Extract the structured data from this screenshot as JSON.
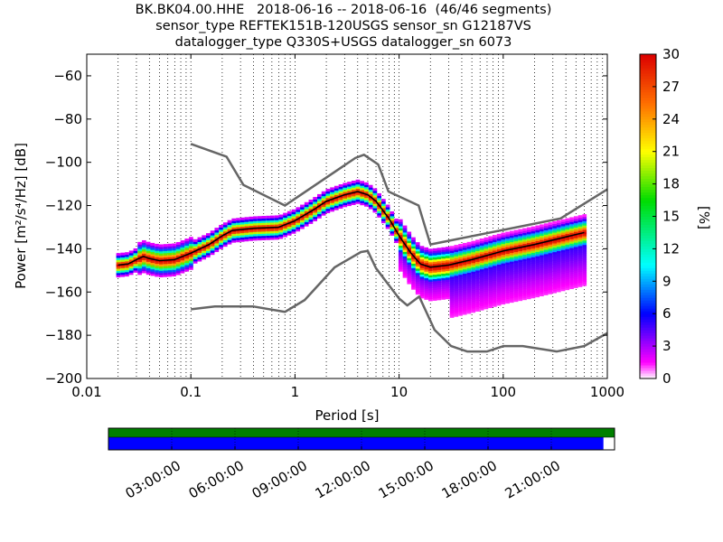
{
  "title_lines": [
    "BK.BK04.00.HHE   2018-06-16 -- 2018-06-16  (46/46 segments)",
    "sensor_type REFTEK151B-120USGS sensor_sn G12187VS",
    "datalogger_type Q330S+USGS datalogger_sn 6073"
  ],
  "chart_data": {
    "type": "heatmap",
    "xlabel": "Period [s]",
    "ylabel": "Power [m²/s⁴/Hz] [dB]",
    "xscale": "log",
    "xlim": [
      0.01,
      1000
    ],
    "ylim": [
      -200,
      -50
    ],
    "x_ticks": [
      0.01,
      0.1,
      1,
      10,
      100,
      1000
    ],
    "x_tick_labels": [
      "0.01",
      "0.1",
      "1",
      "10",
      "100",
      "1000"
    ],
    "y_ticks": [
      -200,
      -180,
      -160,
      -140,
      -120,
      -100,
      -80,
      -60
    ],
    "y_tick_labels": [
      "−200",
      "−180",
      "−160",
      "−140",
      "−120",
      "−100",
      "−80",
      "−60"
    ],
    "grid": "dotted-vertical",
    "colorbar": {
      "label": "[%]",
      "range": [
        0,
        30
      ],
      "ticks": [
        0,
        3,
        6,
        9,
        12,
        15,
        18,
        21,
        24,
        27,
        30
      ],
      "tick_labels": [
        "0",
        "3",
        "6",
        "9",
        "12",
        "15",
        "18",
        "21",
        "24",
        "27",
        "30"
      ]
    },
    "noise_model_high": {
      "x": [
        0.1,
        0.22,
        0.32,
        0.8,
        3.8,
        4.6,
        6.3,
        7.9,
        15.4,
        20,
        354.8,
        1000
      ],
      "y": [
        -91.5,
        -97.4,
        -110.5,
        -120,
        -98,
        -96.5,
        -101,
        -113.5,
        -120,
        -138,
        -126,
        -112.5
      ]
    },
    "noise_model_low": {
      "x": [
        0.1,
        0.17,
        0.4,
        0.8,
        1.24,
        2.4,
        4.3,
        5.0,
        6.0,
        10.0,
        12.0,
        15.6,
        21.9,
        31.6,
        45.0,
        70.0,
        101.0,
        154.0,
        328.0,
        600.0,
        1000.0
      ],
      "y": [
        -168,
        -166.7,
        -166.7,
        -169.2,
        -163.7,
        -148.6,
        -141.5,
        -141.0,
        -149.0,
        -163.0,
        -166.2,
        -162.1,
        -177.5,
        -185.0,
        -187.5,
        -187.5,
        -185.0,
        -185.0,
        -187.5,
        -185.0,
        -179.0
      ]
    },
    "mean_psd": {
      "x": [
        0.02,
        0.025,
        0.03,
        0.035,
        0.04,
        0.05,
        0.07,
        0.1,
        0.15,
        0.2,
        0.25,
        0.4,
        0.7,
        1.0,
        1.5,
        2.0,
        3.0,
        4.0,
        5.0,
        6.0,
        8.0,
        10.0,
        13.0,
        16.0,
        20.0,
        30.0,
        50.0,
        100.0,
        200.0,
        400.0,
        600.0
      ],
      "y": [
        -147.5,
        -147.0,
        -145.0,
        -143.5,
        -144.5,
        -145.5,
        -145.0,
        -142.0,
        -138.0,
        -134.0,
        -131.5,
        -130.5,
        -130.0,
        -127.0,
        -122.0,
        -118.0,
        -115.0,
        -113.5,
        -115.0,
        -118.0,
        -126.0,
        -134.0,
        -142.0,
        -147.0,
        -148.5,
        -147.5,
        -145.0,
        -141.0,
        -138.0,
        -134.5,
        -132.5
      ]
    },
    "timeline_ticks": [
      "03:00:00",
      "06:00:00",
      "09:00:00",
      "12:00:00",
      "15:00:00",
      "18:00:00",
      "21:00:00"
    ],
    "timeline_coverage_fraction": 0.978
  },
  "colors": {
    "noise_model": "#666666",
    "mean_line": "#000000",
    "timeline_top": "#008000",
    "timeline_bottom": "#0000ff"
  }
}
